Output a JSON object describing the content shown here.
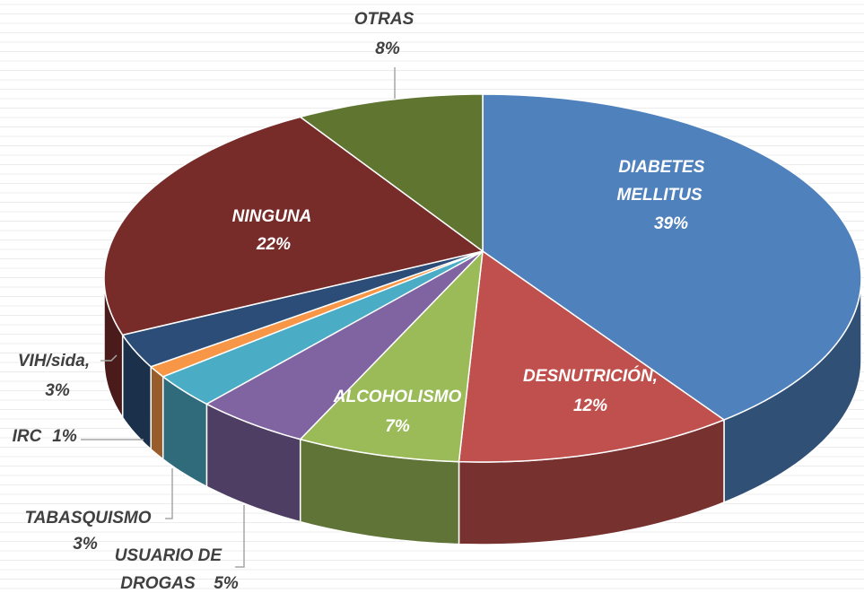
{
  "chart_data": {
    "type": "pie",
    "categories": [
      "DIABETES MELLITUS",
      "DESNUTRICIÓN,",
      "ALCOHOLISMO",
      "USUARIO DE DROGAS",
      "TABASQUISMO",
      "IRC",
      "VIH/sida,",
      "NINGUNA",
      "OTRAS"
    ],
    "values": [
      39,
      12,
      7,
      5,
      3,
      1,
      3,
      22,
      8
    ],
    "value_labels": [
      "39%",
      "12%",
      "7%",
      "5%",
      "3%",
      "1%",
      "3%",
      "22%",
      "8%"
    ],
    "colors": [
      "#4f81bd",
      "#c0504d",
      "#9bbb59",
      "#8064a2",
      "#4bacc6",
      "#f79646",
      "#2c4d77",
      "#772c2a",
      "#5f7530"
    ]
  }
}
